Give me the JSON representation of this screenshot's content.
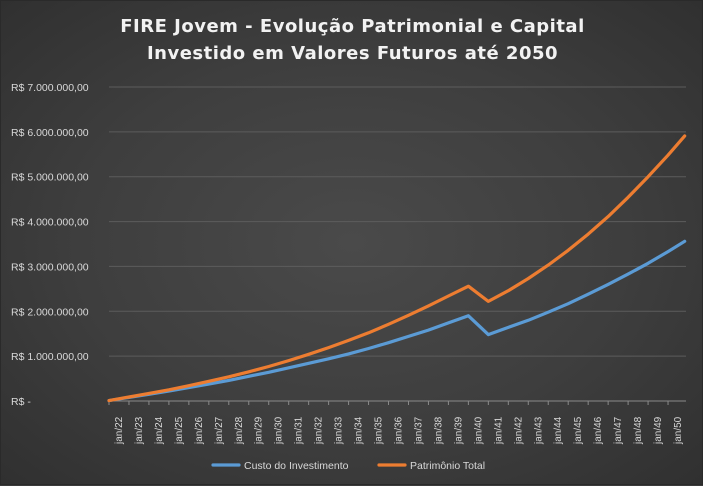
{
  "chart_data": {
    "type": "line",
    "title_line1": "FIRE Jovem - Evolução Patrimonial e Capital",
    "title_line2": "Investido em Valores Futuros até 2050",
    "x": [
      "jan/22",
      "jan/23",
      "jan/24",
      "jan/25",
      "jan/26",
      "jan/27",
      "jan/28",
      "jan/29",
      "jan/30",
      "jan/31",
      "jan/32",
      "jan/33",
      "jan/34",
      "jan/35",
      "jan/36",
      "jan/37",
      "jan/38",
      "jan/39",
      "jan/40",
      "jan/41",
      "jan/42",
      "jan/43",
      "jan/44",
      "jan/45",
      "jan/46",
      "jan/47",
      "jan/48",
      "jan/49",
      "jan/50"
    ],
    "ylim": [
      0,
      7000000
    ],
    "yticks": [
      0,
      1000000,
      2000000,
      3000000,
      4000000,
      5000000,
      6000000,
      7000000
    ],
    "ytick_labels": [
      "R$ -",
      "R$ 1.000.000,00",
      "R$ 2.000.000,00",
      "R$ 3.000.000,00",
      "R$ 4.000.000,00",
      "R$ 5.000.000,00",
      "R$ 6.000.000,00",
      "R$ 7.000.000,00"
    ],
    "grid": true,
    "legend_position": "bottom",
    "series": [
      {
        "name": "Custo do Investimento",
        "color": "#5b9bd5",
        "points": [
          [
            0,
            10000
          ],
          [
            12,
            80000
          ],
          [
            24,
            150000
          ],
          [
            36,
            220000
          ],
          [
            48,
            300000
          ],
          [
            60,
            380000
          ],
          [
            72,
            460000
          ],
          [
            84,
            550000
          ],
          [
            96,
            640000
          ],
          [
            108,
            740000
          ],
          [
            120,
            840000
          ],
          [
            132,
            940000
          ],
          [
            144,
            1050000
          ],
          [
            156,
            1170000
          ],
          [
            168,
            1300000
          ],
          [
            180,
            1440000
          ],
          [
            192,
            1580000
          ],
          [
            204,
            1740000
          ],
          [
            216,
            1900000
          ],
          [
            228,
            1480000
          ],
          [
            240,
            1640000
          ],
          [
            252,
            1800000
          ],
          [
            264,
            1980000
          ],
          [
            276,
            2170000
          ],
          [
            288,
            2380000
          ],
          [
            300,
            2600000
          ],
          [
            312,
            2830000
          ],
          [
            324,
            3070000
          ],
          [
            336,
            3330000
          ],
          [
            346,
            3560000
          ]
        ]
      },
      {
        "name": "Patrimônio Total",
        "color": "#ed7d31",
        "points": [
          [
            0,
            10000
          ],
          [
            12,
            90000
          ],
          [
            24,
            170000
          ],
          [
            36,
            250000
          ],
          [
            48,
            340000
          ],
          [
            60,
            440000
          ],
          [
            72,
            540000
          ],
          [
            84,
            650000
          ],
          [
            96,
            770000
          ],
          [
            108,
            900000
          ],
          [
            120,
            1040000
          ],
          [
            132,
            1190000
          ],
          [
            144,
            1350000
          ],
          [
            156,
            1520000
          ],
          [
            168,
            1710000
          ],
          [
            180,
            1910000
          ],
          [
            192,
            2120000
          ],
          [
            204,
            2340000
          ],
          [
            216,
            2560000
          ],
          [
            228,
            2220000
          ],
          [
            240,
            2460000
          ],
          [
            252,
            2730000
          ],
          [
            264,
            3030000
          ],
          [
            276,
            3360000
          ],
          [
            288,
            3720000
          ],
          [
            300,
            4110000
          ],
          [
            312,
            4540000
          ],
          [
            324,
            5000000
          ],
          [
            336,
            5480000
          ],
          [
            346,
            5910000
          ]
        ]
      }
    ]
  }
}
